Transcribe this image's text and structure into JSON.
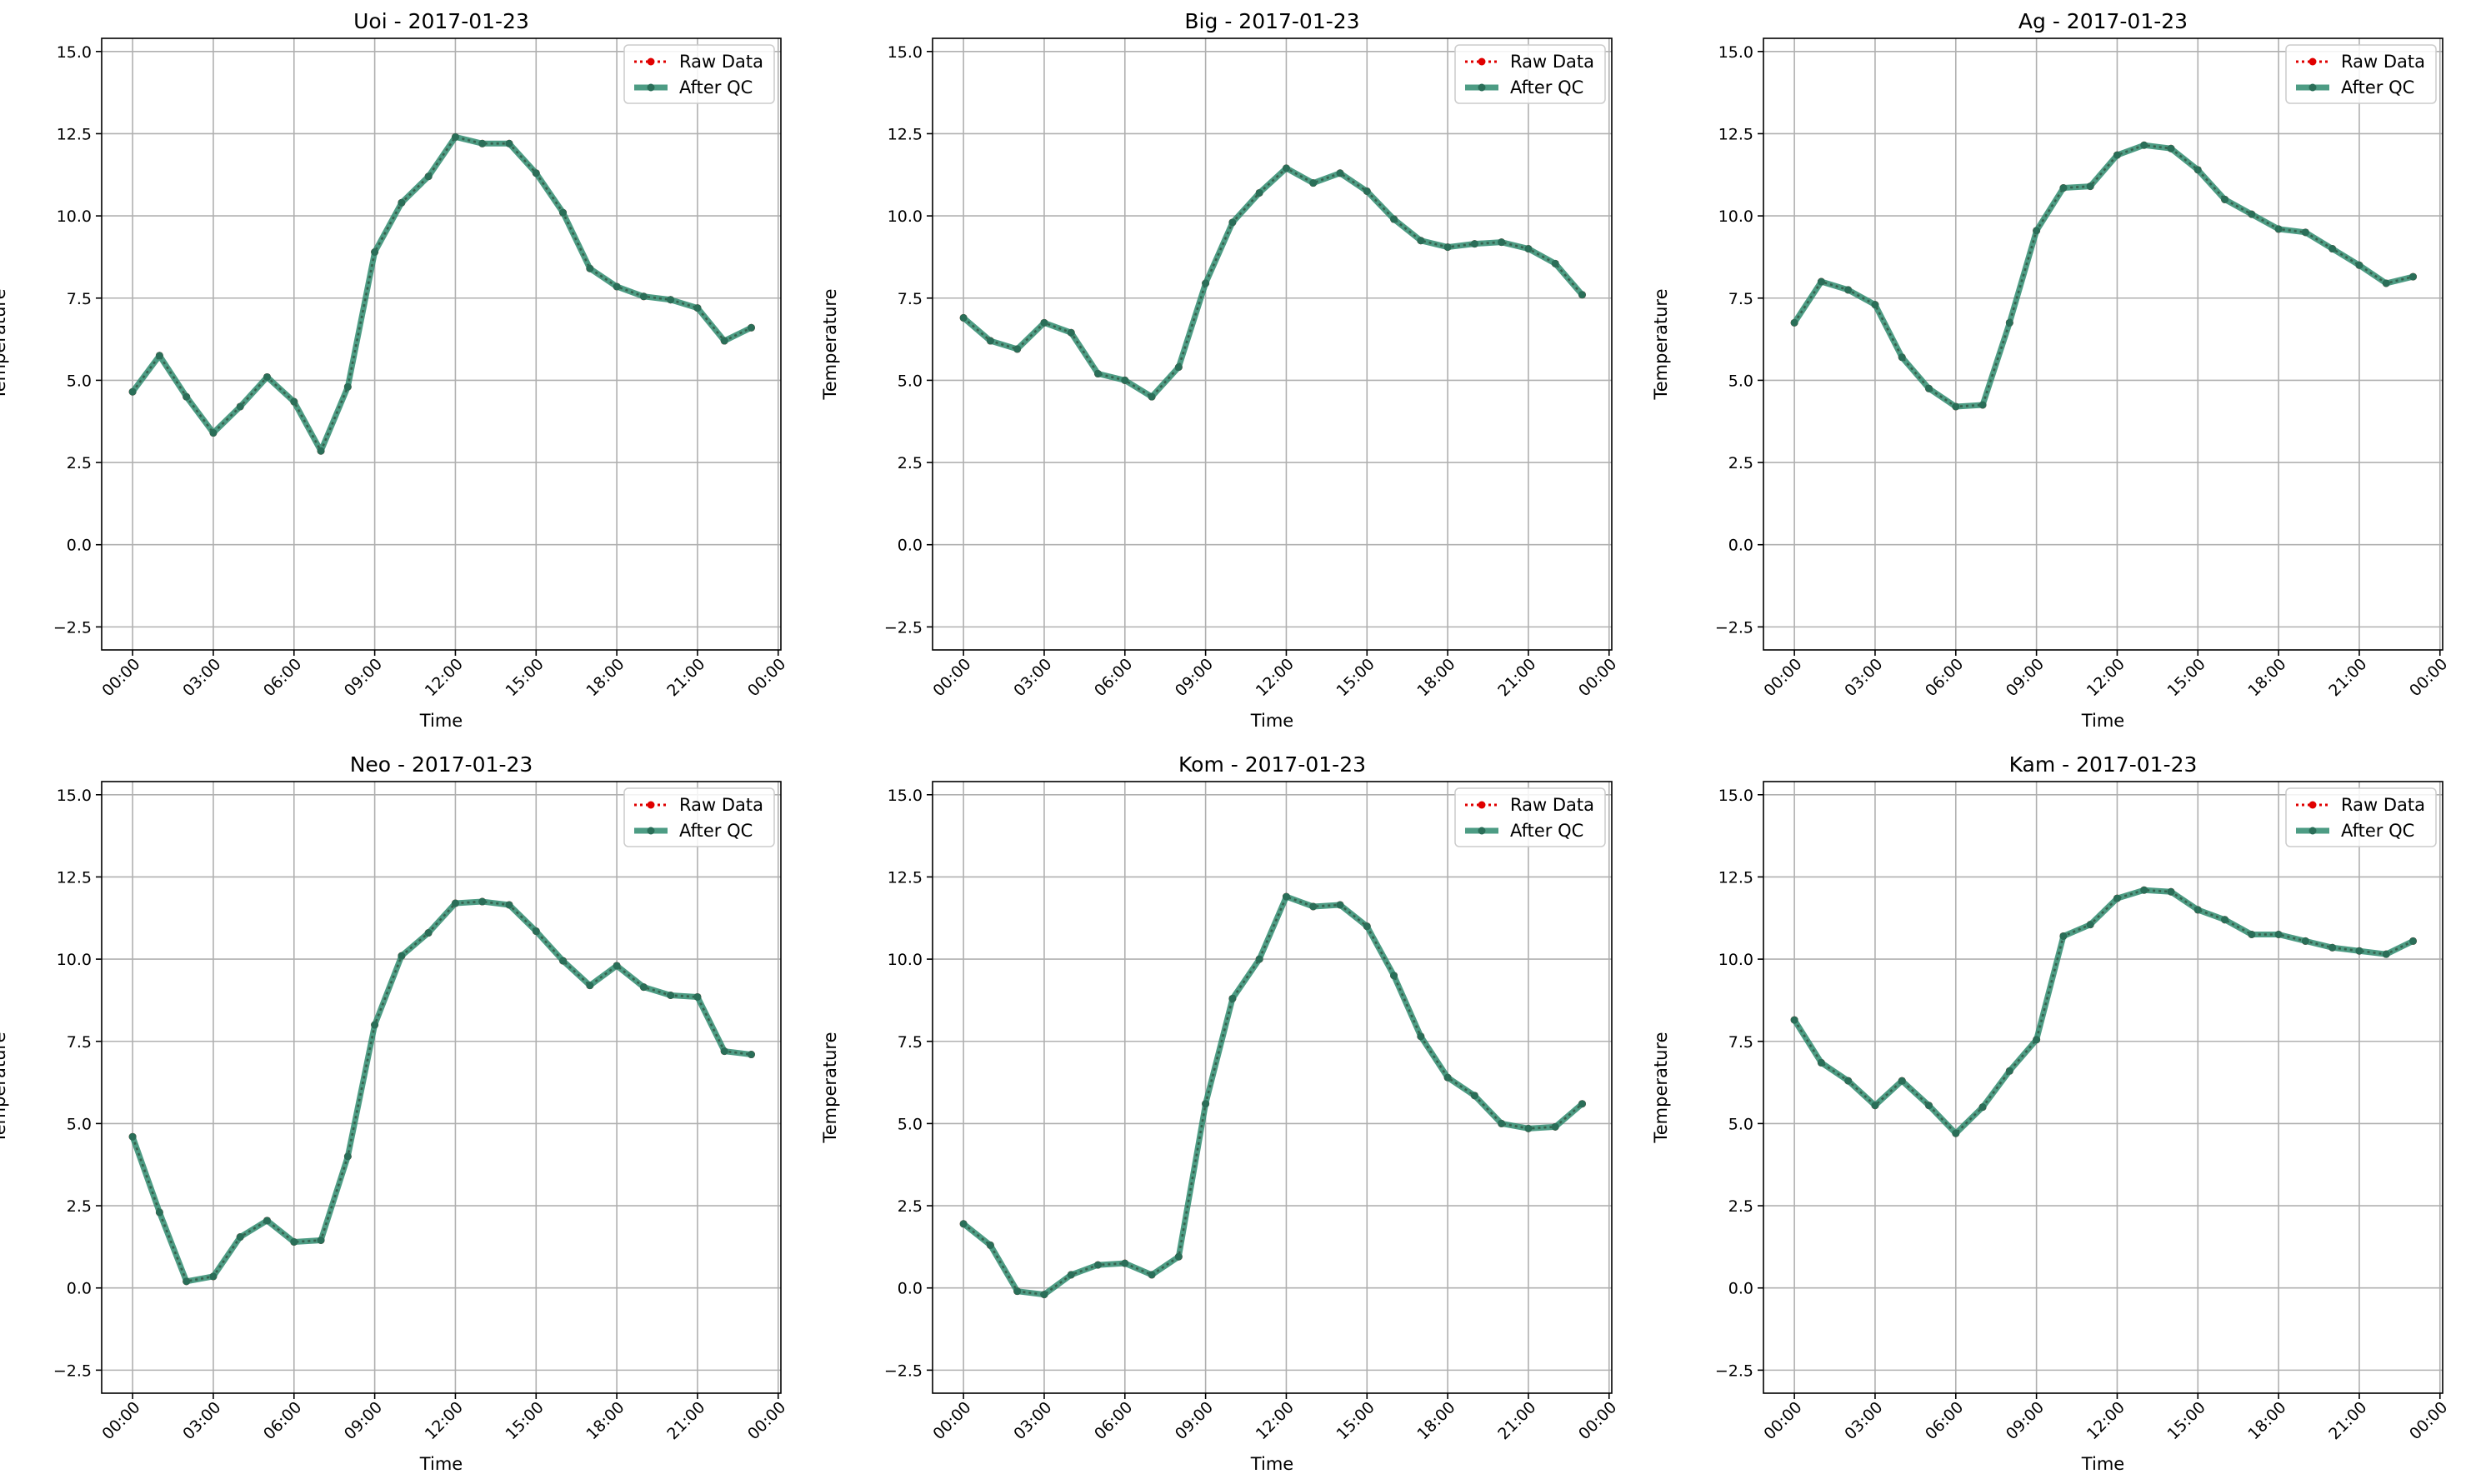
{
  "legend": {
    "raw_label": "Raw Data",
    "qc_label": "After QC"
  },
  "colors": {
    "raw": "#e00000",
    "qc": "#2e8b6f",
    "qc_marker": "#2a6e58",
    "grid": "#b0b0b0"
  },
  "chart_data": [
    {
      "type": "line",
      "title": "Uoi - 2017-01-23",
      "xlabel": "Time",
      "ylabel": "Temperature",
      "ylim": [
        -3.2,
        15.4
      ],
      "yticks": [
        -2.5,
        0.0,
        2.5,
        5.0,
        7.5,
        10.0,
        12.5,
        15.0
      ],
      "yticklabels": [
        "−2.5",
        "0.0",
        "2.5",
        "5.0",
        "7.5",
        "10.0",
        "12.5",
        "15.0"
      ],
      "xticklabels": [
        "00:00",
        "03:00",
        "06:00",
        "09:00",
        "12:00",
        "15:00",
        "18:00",
        "21:00",
        "00:00"
      ],
      "grid": true,
      "legend_position": "top-right",
      "x": [
        0,
        1,
        2,
        3,
        4,
        5,
        6,
        7,
        8,
        9,
        10,
        11,
        12,
        13,
        14,
        15,
        16,
        17,
        18,
        19,
        20,
        21,
        22,
        23
      ],
      "series": [
        {
          "name": "Raw Data",
          "values": [
            4.65,
            5.75,
            4.5,
            3.4,
            4.2,
            5.1,
            4.35,
            2.85,
            4.8,
            8.9,
            10.4,
            11.2,
            12.4,
            12.2,
            12.2,
            11.3,
            10.1,
            8.4,
            7.85,
            7.55,
            7.45,
            7.2,
            6.2,
            6.6
          ]
        },
        {
          "name": "After QC",
          "values": [
            4.65,
            5.75,
            4.5,
            3.4,
            4.2,
            5.1,
            4.35,
            2.85,
            4.8,
            8.9,
            10.4,
            11.2,
            12.4,
            12.2,
            12.2,
            11.3,
            10.1,
            8.4,
            7.85,
            7.55,
            7.45,
            7.2,
            6.2,
            6.6
          ]
        }
      ]
    },
    {
      "type": "line",
      "title": "Big - 2017-01-23",
      "xlabel": "Time",
      "ylabel": "Temperature",
      "ylim": [
        -3.2,
        15.4
      ],
      "yticks": [
        -2.5,
        0.0,
        2.5,
        5.0,
        7.5,
        10.0,
        12.5,
        15.0
      ],
      "yticklabels": [
        "−2.5",
        "0.0",
        "2.5",
        "5.0",
        "7.5",
        "10.0",
        "12.5",
        "15.0"
      ],
      "xticklabels": [
        "00:00",
        "03:00",
        "06:00",
        "09:00",
        "12:00",
        "15:00",
        "18:00",
        "21:00",
        "00:00"
      ],
      "grid": true,
      "legend_position": "top-right",
      "x": [
        0,
        1,
        2,
        3,
        4,
        5,
        6,
        7,
        8,
        9,
        10,
        11,
        12,
        13,
        14,
        15,
        16,
        17,
        18,
        19,
        20,
        21,
        22,
        23
      ],
      "series": [
        {
          "name": "Raw Data",
          "values": [
            6.9,
            6.2,
            5.95,
            6.75,
            6.45,
            5.2,
            5.0,
            4.5,
            5.4,
            7.95,
            9.8,
            10.7,
            11.45,
            11.0,
            11.3,
            10.75,
            9.9,
            9.25,
            9.05,
            9.15,
            9.2,
            9.0,
            8.55,
            7.6
          ]
        },
        {
          "name": "After QC",
          "values": [
            6.9,
            6.2,
            5.95,
            6.75,
            6.45,
            5.2,
            5.0,
            4.5,
            5.4,
            7.95,
            9.8,
            10.7,
            11.45,
            11.0,
            11.3,
            10.75,
            9.9,
            9.25,
            9.05,
            9.15,
            9.2,
            9.0,
            8.55,
            7.6
          ]
        }
      ]
    },
    {
      "type": "line",
      "title": "Ag - 2017-01-23",
      "xlabel": "Time",
      "ylabel": "Temperature",
      "ylim": [
        -3.2,
        15.4
      ],
      "yticks": [
        -2.5,
        0.0,
        2.5,
        5.0,
        7.5,
        10.0,
        12.5,
        15.0
      ],
      "yticklabels": [
        "−2.5",
        "0.0",
        "2.5",
        "5.0",
        "7.5",
        "10.0",
        "12.5",
        "15.0"
      ],
      "xticklabels": [
        "00:00",
        "03:00",
        "06:00",
        "09:00",
        "12:00",
        "15:00",
        "18:00",
        "21:00",
        "00:00"
      ],
      "grid": true,
      "legend_position": "top-right",
      "x": [
        0,
        1,
        2,
        3,
        4,
        5,
        6,
        7,
        8,
        9,
        10,
        11,
        12,
        13,
        14,
        15,
        16,
        17,
        18,
        19,
        20,
        21,
        22,
        23
      ],
      "series": [
        {
          "name": "Raw Data",
          "values": [
            6.75,
            8.0,
            7.75,
            7.3,
            5.7,
            4.75,
            4.2,
            4.25,
            6.75,
            9.55,
            10.85,
            10.9,
            11.85,
            12.15,
            12.05,
            11.4,
            10.5,
            10.05,
            9.6,
            9.5,
            9.0,
            8.5,
            7.95,
            8.15
          ]
        },
        {
          "name": "After QC",
          "values": [
            6.75,
            8.0,
            7.75,
            7.3,
            5.7,
            4.75,
            4.2,
            4.25,
            6.75,
            9.55,
            10.85,
            10.9,
            11.85,
            12.15,
            12.05,
            11.4,
            10.5,
            10.05,
            9.6,
            9.5,
            9.0,
            8.5,
            7.95,
            8.15
          ]
        }
      ]
    },
    {
      "type": "line",
      "title": "Neo - 2017-01-23",
      "xlabel": "Time",
      "ylabel": "Temperature",
      "ylim": [
        -3.2,
        15.4
      ],
      "yticks": [
        -2.5,
        0.0,
        2.5,
        5.0,
        7.5,
        10.0,
        12.5,
        15.0
      ],
      "yticklabels": [
        "−2.5",
        "0.0",
        "2.5",
        "5.0",
        "7.5",
        "10.0",
        "12.5",
        "15.0"
      ],
      "xticklabels": [
        "00:00",
        "03:00",
        "06:00",
        "09:00",
        "12:00",
        "15:00",
        "18:00",
        "21:00",
        "00:00"
      ],
      "grid": true,
      "legend_position": "top-right",
      "x": [
        0,
        1,
        2,
        3,
        4,
        5,
        6,
        7,
        8,
        9,
        10,
        11,
        12,
        13,
        14,
        15,
        16,
        17,
        18,
        19,
        20,
        21,
        22,
        23
      ],
      "series": [
        {
          "name": "Raw Data",
          "values": [
            4.6,
            2.3,
            0.2,
            0.35,
            1.55,
            2.05,
            1.4,
            1.45,
            4.0,
            8.0,
            10.1,
            10.8,
            11.7,
            11.75,
            11.65,
            10.85,
            9.95,
            9.2,
            9.8,
            9.15,
            8.9,
            8.85,
            7.2,
            7.1
          ]
        },
        {
          "name": "After QC",
          "values": [
            4.6,
            2.3,
            0.2,
            0.35,
            1.55,
            2.05,
            1.4,
            1.45,
            4.0,
            8.0,
            10.1,
            10.8,
            11.7,
            11.75,
            11.65,
            10.85,
            9.95,
            9.2,
            9.8,
            9.15,
            8.9,
            8.85,
            7.2,
            7.1
          ]
        }
      ]
    },
    {
      "type": "line",
      "title": "Kom - 2017-01-23",
      "xlabel": "Time",
      "ylabel": "Temperature",
      "ylim": [
        -3.2,
        15.4
      ],
      "yticks": [
        -2.5,
        0.0,
        2.5,
        5.0,
        7.5,
        10.0,
        12.5,
        15.0
      ],
      "yticklabels": [
        "−2.5",
        "0.0",
        "2.5",
        "5.0",
        "7.5",
        "10.0",
        "12.5",
        "15.0"
      ],
      "xticklabels": [
        "00:00",
        "03:00",
        "06:00",
        "09:00",
        "12:00",
        "15:00",
        "18:00",
        "21:00",
        "00:00"
      ],
      "grid": true,
      "legend_position": "top-right",
      "x": [
        0,
        1,
        2,
        3,
        4,
        5,
        6,
        7,
        8,
        9,
        10,
        11,
        12,
        13,
        14,
        15,
        16,
        17,
        18,
        19,
        20,
        21,
        22,
        23
      ],
      "series": [
        {
          "name": "Raw Data",
          "values": [
            1.95,
            1.3,
            -0.1,
            -0.2,
            0.4,
            0.7,
            0.75,
            0.4,
            0.95,
            5.6,
            8.8,
            10.0,
            11.9,
            11.6,
            11.65,
            11.0,
            9.5,
            7.65,
            6.4,
            5.85,
            5.0,
            4.85,
            4.9,
            5.6
          ]
        },
        {
          "name": "After QC",
          "values": [
            1.95,
            1.3,
            -0.1,
            -0.2,
            0.4,
            0.7,
            0.75,
            0.4,
            0.95,
            5.6,
            8.8,
            10.0,
            11.9,
            11.6,
            11.65,
            11.0,
            9.5,
            7.65,
            6.4,
            5.85,
            5.0,
            4.85,
            4.9,
            5.6
          ]
        }
      ]
    },
    {
      "type": "line",
      "title": "Kam - 2017-01-23",
      "xlabel": "Time",
      "ylabel": "Temperature",
      "ylim": [
        -3.2,
        15.4
      ],
      "yticks": [
        -2.5,
        0.0,
        2.5,
        5.0,
        7.5,
        10.0,
        12.5,
        15.0
      ],
      "yticklabels": [
        "−2.5",
        "0.0",
        "2.5",
        "5.0",
        "7.5",
        "10.0",
        "12.5",
        "15.0"
      ],
      "xticklabels": [
        "00:00",
        "03:00",
        "06:00",
        "09:00",
        "12:00",
        "15:00",
        "18:00",
        "21:00",
        "00:00"
      ],
      "grid": true,
      "legend_position": "top-right",
      "x": [
        0,
        1,
        2,
        3,
        4,
        5,
        6,
        7,
        8,
        9,
        10,
        11,
        12,
        13,
        14,
        15,
        16,
        17,
        18,
        19,
        20,
        21,
        22,
        23
      ],
      "series": [
        {
          "name": "Raw Data",
          "values": [
            8.15,
            6.85,
            6.3,
            5.55,
            6.3,
            5.55,
            4.7,
            5.5,
            6.6,
            7.55,
            10.7,
            11.05,
            11.85,
            12.1,
            12.05,
            11.5,
            11.2,
            10.75,
            10.75,
            10.55,
            10.35,
            10.25,
            10.15,
            10.55
          ]
        },
        {
          "name": "After QC",
          "values": [
            8.15,
            6.85,
            6.3,
            5.55,
            6.3,
            5.55,
            4.7,
            5.5,
            6.6,
            7.55,
            10.7,
            11.05,
            11.85,
            12.1,
            12.05,
            11.5,
            11.2,
            10.75,
            10.75,
            10.55,
            10.35,
            10.25,
            10.15,
            10.55
          ]
        }
      ]
    }
  ]
}
